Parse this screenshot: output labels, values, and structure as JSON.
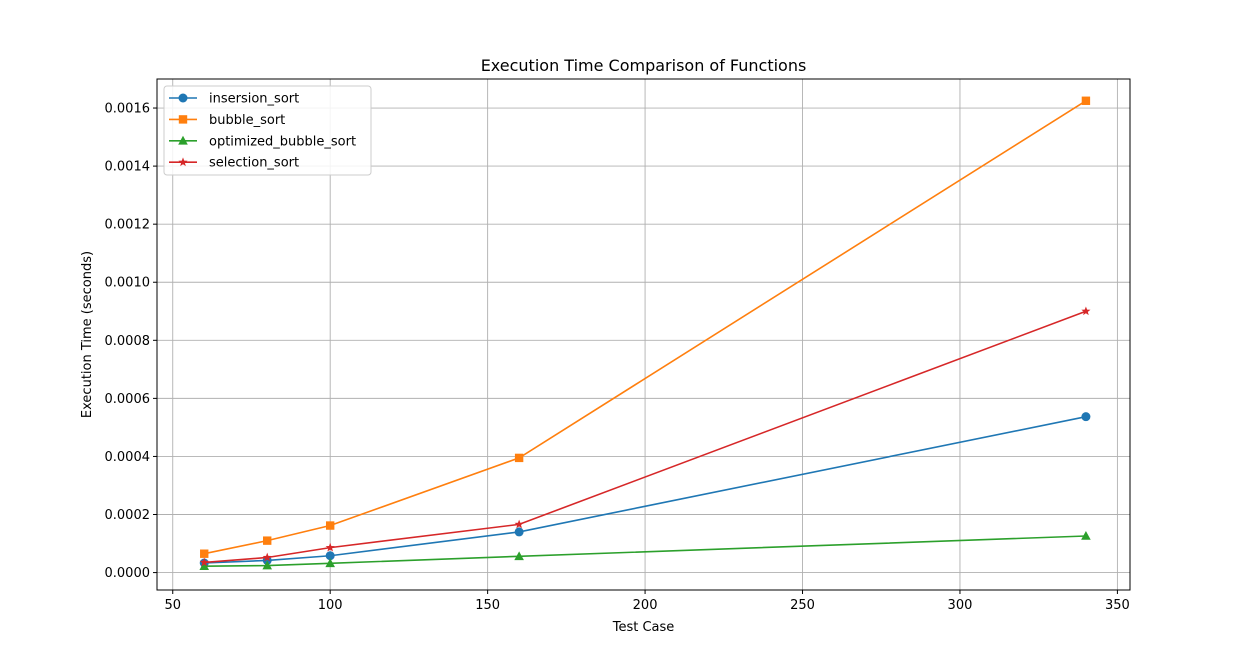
{
  "chart_data": {
    "type": "line",
    "title": "Execution Time Comparison of Functions",
    "xlabel": "Test Case",
    "ylabel": "Execution Time (seconds)",
    "xlim": [
      45,
      354
    ],
    "ylim": [
      -6e-05,
      0.0017
    ],
    "xticks": [
      50,
      100,
      150,
      200,
      250,
      300,
      350
    ],
    "xtick_labels": [
      "50",
      "100",
      "150",
      "200",
      "250",
      "300",
      "350"
    ],
    "yticks": [
      0,
      0.0002,
      0.0004,
      0.0006,
      0.0008,
      0.001,
      0.0012,
      0.0014,
      0.0016
    ],
    "ytick_labels": [
      "0.0000",
      "0.0002",
      "0.0004",
      "0.0006",
      "0.0008",
      "0.0010",
      "0.0012",
      "0.0014",
      "0.0016"
    ],
    "grid": true,
    "legend_position": "top-left",
    "x": [
      60,
      80,
      100,
      160,
      340
    ],
    "series": [
      {
        "name": "insersion_sort",
        "color": "#1f77b4",
        "marker": "circle",
        "values": [
          3.3e-05,
          4.2e-05,
          5.8e-05,
          0.00014,
          0.000537
        ]
      },
      {
        "name": "bubble_sort",
        "color": "#ff7f0e",
        "marker": "square",
        "values": [
          6.5e-05,
          0.00011,
          0.000162,
          0.000395,
          0.001625
        ]
      },
      {
        "name": "optimized_bubble_sort",
        "color": "#2ca02c",
        "marker": "triangle",
        "values": [
          2.2e-05,
          2.4e-05,
          3.2e-05,
          5.6e-05,
          0.000126
        ]
      },
      {
        "name": "selection_sort",
        "color": "#d62728",
        "marker": "star",
        "values": [
          3.5e-05,
          5.2e-05,
          8.6e-05,
          0.000166,
          0.0009
        ]
      }
    ]
  }
}
